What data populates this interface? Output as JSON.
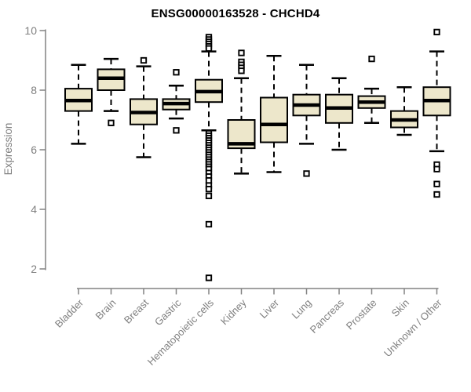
{
  "chart_data": {
    "type": "boxplot",
    "title": "ENSG00000163528 - CHCHD4",
    "ylabel": "Expression",
    "xlabel": "",
    "yticks": [
      2,
      4,
      6,
      8,
      10
    ],
    "ylim": [
      1.6,
      10.1
    ],
    "grid": false,
    "legend": "none",
    "categories": [
      "Bladder",
      "Brain",
      "Breast",
      "Gastric",
      "Hematopoietic cells",
      "Kidney",
      "Liver",
      "Lung",
      "Pancreas",
      "Prostate",
      "Skin",
      "Unknown / Other"
    ],
    "series": [
      {
        "name": "Bladder",
        "low": 6.2,
        "q1": 7.3,
        "median": 7.65,
        "q3": 8.05,
        "high": 8.85,
        "outliers": []
      },
      {
        "name": "Brain",
        "low": 7.3,
        "q1": 8.0,
        "median": 8.4,
        "q3": 8.7,
        "high": 9.05,
        "outliers": [
          6.9
        ]
      },
      {
        "name": "Breast",
        "low": 5.75,
        "q1": 6.85,
        "median": 7.25,
        "q3": 7.7,
        "high": 8.8,
        "outliers": [
          9.0
        ]
      },
      {
        "name": "Gastric",
        "low": 7.05,
        "q1": 7.35,
        "median": 7.55,
        "q3": 7.7,
        "high": 8.15,
        "outliers": [
          8.6,
          6.65
        ]
      },
      {
        "name": "Hematopoietic cells",
        "low": 6.65,
        "q1": 7.6,
        "median": 7.95,
        "q3": 8.35,
        "high": 9.3,
        "outliers": [
          9.78,
          9.7,
          9.62,
          9.55,
          9.47,
          9.4,
          6.55,
          6.47,
          6.39,
          6.31,
          6.23,
          6.15,
          6.07,
          5.99,
          5.91,
          5.83,
          5.75,
          5.67,
          5.59,
          5.51,
          5.43,
          5.35,
          5.22,
          5.1,
          4.97,
          4.8,
          4.68,
          4.45,
          3.5,
          1.7
        ]
      },
      {
        "name": "Kidney",
        "low": 5.2,
        "q1": 6.05,
        "median": 6.2,
        "q3": 7.0,
        "high": 8.4,
        "outliers": [
          9.25,
          8.95,
          8.85,
          8.75,
          8.65
        ]
      },
      {
        "name": "Liver",
        "low": 5.25,
        "q1": 6.25,
        "median": 6.85,
        "q3": 7.75,
        "high": 9.15,
        "outliers": []
      },
      {
        "name": "Lung",
        "low": 6.2,
        "q1": 7.15,
        "median": 7.5,
        "q3": 7.85,
        "high": 8.85,
        "outliers": [
          5.2
        ]
      },
      {
        "name": "Pancreas",
        "low": 6.0,
        "q1": 6.9,
        "median": 7.4,
        "q3": 7.85,
        "high": 8.4,
        "outliers": []
      },
      {
        "name": "Prostate",
        "low": 6.9,
        "q1": 7.4,
        "median": 7.6,
        "q3": 7.8,
        "high": 8.05,
        "outliers": [
          9.05
        ]
      },
      {
        "name": "Skin",
        "low": 6.5,
        "q1": 6.75,
        "median": 7.0,
        "q3": 7.3,
        "high": 8.1,
        "outliers": []
      },
      {
        "name": "Unknown / Other",
        "low": 5.95,
        "q1": 7.15,
        "median": 7.65,
        "q3": 8.1,
        "high": 9.3,
        "outliers": [
          9.95,
          5.5,
          5.35,
          4.85,
          4.5
        ]
      }
    ],
    "colors": {
      "box_fill": "#EDE7CB",
      "box_stroke": "#000000",
      "median": "#000000",
      "whisker": "#000000",
      "axis": "#828282",
      "tick_label": "#808080",
      "title": "#000000"
    }
  }
}
